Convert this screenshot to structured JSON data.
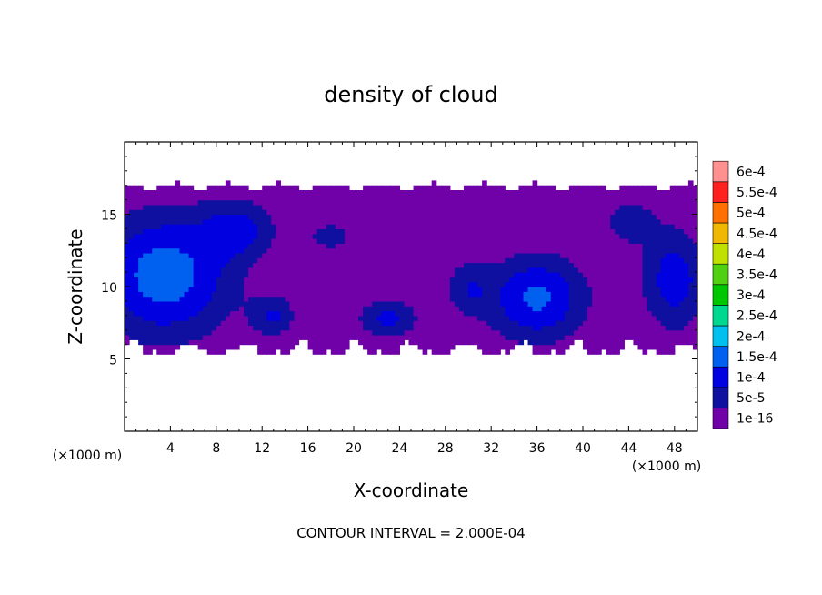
{
  "chart_data": {
    "type": "heatmap",
    "title": "density of cloud",
    "xlabel": "X-coordinate",
    "ylabel": "Z-coordinate",
    "x_unit": "(×1000 m)",
    "xlim": [
      0,
      50
    ],
    "ylim": [
      0,
      20
    ],
    "x_ticks": [
      4,
      8,
      12,
      16,
      20,
      24,
      28,
      32,
      36,
      40,
      44,
      48
    ],
    "y_ticks": [
      5,
      10,
      15
    ],
    "colorbar": {
      "levels": [
        "1e-16",
        "5e-5",
        "1e-4",
        "1.5e-4",
        "2e-4",
        "2.5e-4",
        "3e-4",
        "3.5e-4",
        "4e-4",
        "4.5e-4",
        "5e-4",
        "5.5e-4",
        "6e-4"
      ],
      "colors": [
        "#7000a8",
        "#1010a0",
        "#0000e0",
        "#0060f0",
        "#00c0f0",
        "#00d890",
        "#00c800",
        "#50d010",
        "#c0e000",
        "#f0b800",
        "#ff7000",
        "#ff2020",
        "#ff9090"
      ]
    },
    "cloud_layer": {
      "z_bottom": 5.2,
      "z_top": 17.2
    },
    "blobs": [
      {
        "x": 3.5,
        "z": 10.8,
        "rx": 7.5,
        "rz": 5.5,
        "peak": 0.00018
      },
      {
        "x": 10,
        "z": 14,
        "rx": 4,
        "rz": 2.5,
        "peak": 0.00011
      },
      {
        "x": 13,
        "z": 8,
        "rx": 2.5,
        "rz": 1.8,
        "peak": 0.0001
      },
      {
        "x": 23,
        "z": 7.8,
        "rx": 3.5,
        "rz": 1.8,
        "peak": 0.00011
      },
      {
        "x": 18,
        "z": 13.5,
        "rx": 3,
        "rz": 1.5,
        "peak": 7e-05
      },
      {
        "x": 36,
        "z": 9.2,
        "rx": 5.5,
        "rz": 3.8,
        "peak": 0.00016
      },
      {
        "x": 48,
        "z": 10.5,
        "rx": 3.5,
        "rz": 4.5,
        "peak": 0.00013
      },
      {
        "x": 30,
        "z": 10,
        "rx": 2.5,
        "rz": 2.5,
        "peak": 8e-05
      },
      {
        "x": 44,
        "z": 14.5,
        "rx": 3,
        "rz": 2,
        "peak": 8e-05
      }
    ],
    "contour_note": "CONTOUR INTERVAL = 2.000E-04"
  }
}
